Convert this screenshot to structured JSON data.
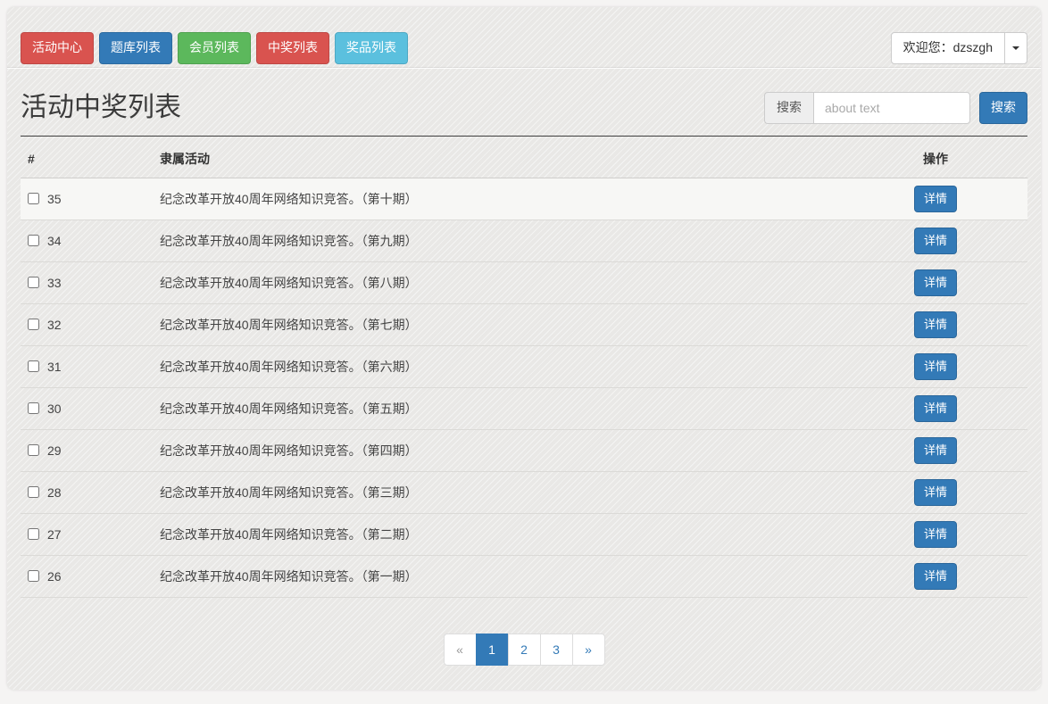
{
  "colors": {
    "danger": "#d9534f",
    "primary": "#337ab7",
    "success": "#5cb85c",
    "info": "#5bc0de"
  },
  "navbar": {
    "buttons": [
      {
        "label": "活动中心",
        "color": "#d9534f"
      },
      {
        "label": "题库列表",
        "color": "#337ab7"
      },
      {
        "label": "会员列表",
        "color": "#5cb85c"
      },
      {
        "label": "中奖列表",
        "color": "#d9534f"
      },
      {
        "label": "奖品列表",
        "color": "#5bc0de"
      }
    ],
    "welcome_label": "欢迎您：dzszgh"
  },
  "header": {
    "title": "活动中奖列表"
  },
  "search": {
    "addon_label": "搜索",
    "placeholder": "about text",
    "button_label": "搜索"
  },
  "table": {
    "columns": {
      "id": "#",
      "activity": "隶属活动",
      "action": "操作"
    },
    "action_label": "详情",
    "rows": [
      {
        "id": "35",
        "activity": "纪念改革开放40周年网络知识竞答。（第十期）",
        "highlighted": true,
        "checked": false
      },
      {
        "id": "34",
        "activity": "纪念改革开放40周年网络知识竞答。（第九期）",
        "highlighted": false,
        "checked": false
      },
      {
        "id": "33",
        "activity": "纪念改革开放40周年网络知识竞答。（第八期）",
        "highlighted": false,
        "checked": false
      },
      {
        "id": "32",
        "activity": "纪念改革开放40周年网络知识竞答。（第七期）",
        "highlighted": false,
        "checked": false
      },
      {
        "id": "31",
        "activity": "纪念改革开放40周年网络知识竞答。（第六期）",
        "highlighted": false,
        "checked": false
      },
      {
        "id": "30",
        "activity": "纪念改革开放40周年网络知识竞答。（第五期）",
        "highlighted": false,
        "checked": false
      },
      {
        "id": "29",
        "activity": "纪念改革开放40周年网络知识竞答。（第四期）",
        "highlighted": false,
        "checked": false
      },
      {
        "id": "28",
        "activity": "纪念改革开放40周年网络知识竞答。（第三期）",
        "highlighted": false,
        "checked": false
      },
      {
        "id": "27",
        "activity": "纪念改革开放40周年网络知识竞答。（第二期）",
        "highlighted": false,
        "checked": false
      },
      {
        "id": "26",
        "activity": "纪念改革开放40周年网络知识竞答。（第一期）",
        "highlighted": false,
        "checked": false
      }
    ]
  },
  "pagination": {
    "items": [
      {
        "label": "«",
        "state": "disabled"
      },
      {
        "label": "1",
        "state": "active"
      },
      {
        "label": "2",
        "state": "normal"
      },
      {
        "label": "3",
        "state": "normal"
      },
      {
        "label": "»",
        "state": "normal"
      }
    ]
  }
}
